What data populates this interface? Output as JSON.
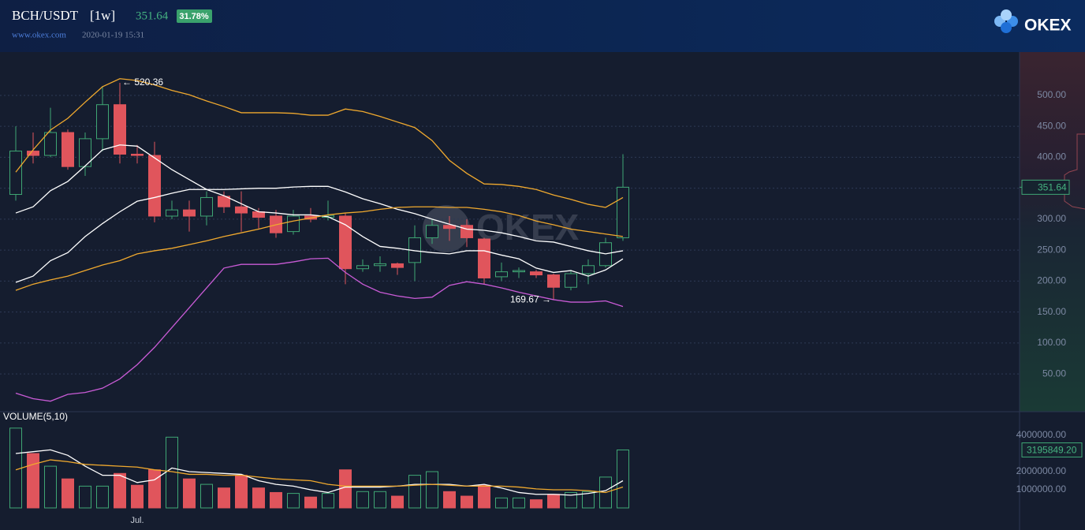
{
  "header": {
    "pair": "BCH/USDT",
    "interval": "[1w]",
    "change": "31.78%",
    "site": "www.okex.com",
    "time": "2020-01-19 15:31",
    "logo": "OKEX"
  },
  "chart_data": [
    {
      "type": "candlestick",
      "categories": [
        null,
        null,
        null,
        null,
        null,
        null,
        null,
        "Jul.",
        null,
        null,
        null,
        null,
        null,
        null,
        null,
        null,
        null,
        null,
        null,
        null,
        null,
        null,
        null,
        null,
        null,
        null,
        null,
        null,
        null,
        null,
        null,
        null,
        null,
        null,
        null,
        null
      ],
      "open": [
        340,
        410,
        403,
        440,
        385,
        430,
        485,
        405,
        403,
        305,
        315,
        305,
        337,
        320,
        312,
        305,
        280,
        305,
        303,
        305,
        220,
        225,
        228,
        230,
        270,
        290,
        290,
        268,
        207,
        215,
        215,
        210,
        190,
        212,
        225,
        270
      ],
      "high": [
        450,
        440,
        480,
        445,
        440,
        515,
        520.36,
        420,
        425,
        330,
        330,
        345,
        345,
        345,
        318,
        315,
        315,
        318,
        330,
        310,
        235,
        240,
        230,
        290,
        300,
        305,
        300,
        270,
        230,
        222,
        218,
        212,
        218,
        235,
        270,
        405
      ],
      "low": [
        330,
        390,
        400,
        380,
        370,
        410,
        390,
        390,
        295,
        300,
        280,
        290,
        310,
        280,
        285,
        270,
        275,
        295,
        298,
        195,
        215,
        215,
        210,
        200,
        260,
        265,
        255,
        195,
        200,
        205,
        205,
        169.67,
        185,
        195,
        222,
        265
      ],
      "close": [
        410,
        403,
        440,
        385,
        430,
        485,
        405,
        403,
        305,
        315,
        305,
        335,
        320,
        310,
        303,
        278,
        305,
        300,
        306,
        220,
        225,
        228,
        222,
        270,
        290,
        285,
        270,
        205,
        215,
        217,
        210,
        190,
        212,
        225,
        262,
        351.64
      ],
      "up_color": "#3fa674",
      "down_color": "#e0555c",
      "lines": [
        {
          "color": "#f0a92e",
          "values": [
            376,
            412,
            444,
            463,
            489,
            514,
            527,
            524,
            517,
            508,
            501,
            491,
            482,
            472,
            472,
            472,
            471,
            468,
            468,
            478,
            474,
            466,
            457,
            448,
            427,
            395,
            374,
            357,
            356,
            353,
            348,
            339,
            332,
            324,
            319,
            335
          ]
        },
        {
          "color": "#ffffff",
          "values": [
            198,
            208,
            233,
            246,
            272,
            293,
            312,
            329,
            335,
            342,
            348,
            348,
            348,
            349,
            350,
            350,
            352,
            353,
            353,
            344,
            333,
            325,
            316,
            309,
            300,
            292,
            284,
            282,
            278,
            272,
            265,
            263,
            256,
            249,
            244,
            249
          ]
        },
        {
          "color": "#c95bd6",
          "values": [
            19,
            10,
            6,
            17,
            20,
            27,
            42,
            65,
            93,
            125,
            157,
            189,
            221,
            227,
            227,
            227,
            231,
            236,
            237,
            214,
            195,
            182,
            176,
            172,
            174,
            193,
            199,
            195,
            189,
            182,
            176,
            170,
            166,
            166,
            168,
            159
          ]
        },
        {
          "color": "#ffffff",
          "values": [
            310,
            320,
            346,
            361,
            386,
            412,
            420,
            418,
            399,
            380,
            364,
            348,
            338,
            325,
            312,
            310,
            307,
            307,
            304,
            291,
            272,
            256,
            253,
            249,
            246,
            244,
            249,
            249,
            242,
            236,
            221,
            214,
            217,
            208,
            218,
            236
          ]
        },
        {
          "color": "#f0a92e",
          "values": [
            185,
            195,
            202,
            208,
            217,
            226,
            233,
            244,
            249,
            253,
            259,
            265,
            272,
            278,
            284,
            291,
            297,
            302,
            307,
            310,
            312,
            316,
            319,
            320,
            320,
            319,
            319,
            316,
            312,
            306,
            297,
            291,
            284,
            280,
            276,
            272
          ]
        }
      ],
      "ylim": [
        -11,
        570
      ],
      "yticks": [
        {
          "value": 50,
          "label": "50.00"
        },
        {
          "value": 100,
          "label": "100.00"
        },
        {
          "value": 150,
          "label": "150.00"
        },
        {
          "value": 200,
          "label": "200.00"
        },
        {
          "value": 250,
          "label": "250.00"
        },
        {
          "value": 300,
          "label": "300.00"
        },
        {
          "value": 350,
          "label": "350.00"
        },
        {
          "value": 400,
          "label": "400.00"
        },
        {
          "value": 450,
          "label": "450.00"
        },
        {
          "value": 500,
          "label": "500.00"
        }
      ],
      "last": 351.64,
      "annotations": [
        {
          "value": 520.36,
          "label": "← 520.36"
        },
        {
          "value": 169.67,
          "label": "169.67 →"
        }
      ],
      "grid": true
    },
    {
      "type": "bar",
      "title": "VOLUME(5,10)",
      "values": [
        4400000,
        3000000,
        2300000,
        1600000,
        1200000,
        1200000,
        1900000,
        1250000,
        2100000,
        3900000,
        1600000,
        1300000,
        1100000,
        1800000,
        1100000,
        850000,
        800000,
        600000,
        800000,
        2100000,
        900000,
        900000,
        650000,
        1800000,
        2000000,
        900000,
        650000,
        1250000,
        550000,
        550000,
        450000,
        750000,
        850000,
        900000,
        1700000,
        3195849.2
      ],
      "lines": [
        {
          "color": "#ffffff",
          "values": [
            3000000,
            3100000,
            3200000,
            2900000,
            2300000,
            1800000,
            1800000,
            1400000,
            1550000,
            2200000,
            2000000,
            1950000,
            1900000,
            1850000,
            1500000,
            1300000,
            1200000,
            1000000,
            850000,
            1150000,
            1150000,
            1150000,
            1200000,
            1300000,
            1300000,
            1300000,
            1200000,
            1300000,
            1100000,
            850000,
            750000,
            750000,
            700000,
            800000,
            950000,
            1500000
          ]
        },
        {
          "color": "#f0a92e",
          "values": [
            2100000,
            2400000,
            2650000,
            2550000,
            2400000,
            2350000,
            2300000,
            2250000,
            2100000,
            2000000,
            1850000,
            1850000,
            1800000,
            1800000,
            1700000,
            1600000,
            1550000,
            1500000,
            1300000,
            1200000,
            1200000,
            1200000,
            1200000,
            1250000,
            1300000,
            1250000,
            1200000,
            1200000,
            1200000,
            1150000,
            1050000,
            1000000,
            1000000,
            950000,
            850000,
            1150000
          ]
        }
      ],
      "ylim": [
        0,
        5000000
      ],
      "yticks": [
        {
          "value": 1000000,
          "label": "1000000.00"
        },
        {
          "value": 2000000,
          "label": "2000000.00"
        },
        {
          "value": 4000000,
          "label": "4000000.00"
        }
      ],
      "last": {
        "value": 3195849.2,
        "label": "3195849.20"
      }
    }
  ]
}
